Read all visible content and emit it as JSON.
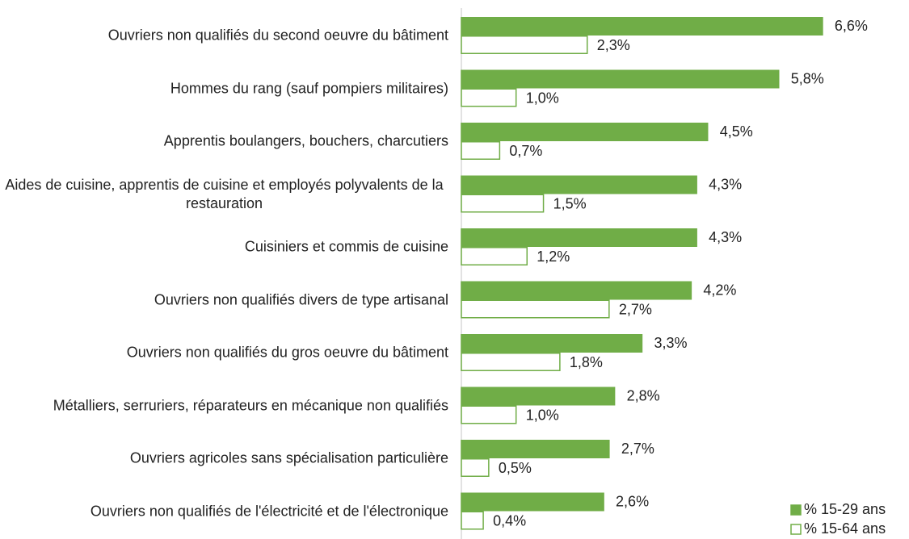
{
  "chart_data": {
    "type": "barh",
    "categories": [
      "Ouvriers non qualifiés du second oeuvre du bâtiment",
      "Hommes du rang (sauf pompiers militaires)",
      "Apprentis boulangers, bouchers, charcutiers",
      "Aides de cuisine, apprentis de cuisine et employés polyvalents de la restauration",
      "Cuisiniers et commis de cuisine",
      "Ouvriers non qualifiés divers de type artisanal",
      "Ouvriers non qualifiés du gros oeuvre du bâtiment",
      "Métalliers, serruriers, réparateurs en mécanique non qualifiés",
      "Ouvriers agricoles sans spécialisation particulière",
      "Ouvriers non qualifiés de l'électricité et de l'électronique"
    ],
    "series": [
      {
        "name": "% 15-29 ans",
        "color": "#70ad47",
        "values": [
          6.6,
          5.8,
          4.5,
          4.3,
          4.3,
          4.2,
          3.3,
          2.8,
          2.7,
          2.6
        ],
        "value_labels": [
          "6,6%",
          "5,8%",
          "4,5%",
          "4,3%",
          "4,3%",
          "4,2%",
          "3,3%",
          "2,8%",
          "2,7%",
          "2,6%"
        ]
      },
      {
        "name": "% 15-64 ans",
        "color": "#ffffff",
        "values": [
          2.3,
          1.0,
          0.7,
          1.5,
          1.2,
          2.7,
          1.8,
          1.0,
          0.5,
          0.4
        ],
        "value_labels": [
          "2,3%",
          "1,0%",
          "0,7%",
          "1,5%",
          "1,2%",
          "2,7%",
          "1,8%",
          "1,0%",
          "0,5%",
          "0,4%"
        ]
      }
    ],
    "xlim": [
      0,
      7
    ],
    "legend": "lower right"
  }
}
